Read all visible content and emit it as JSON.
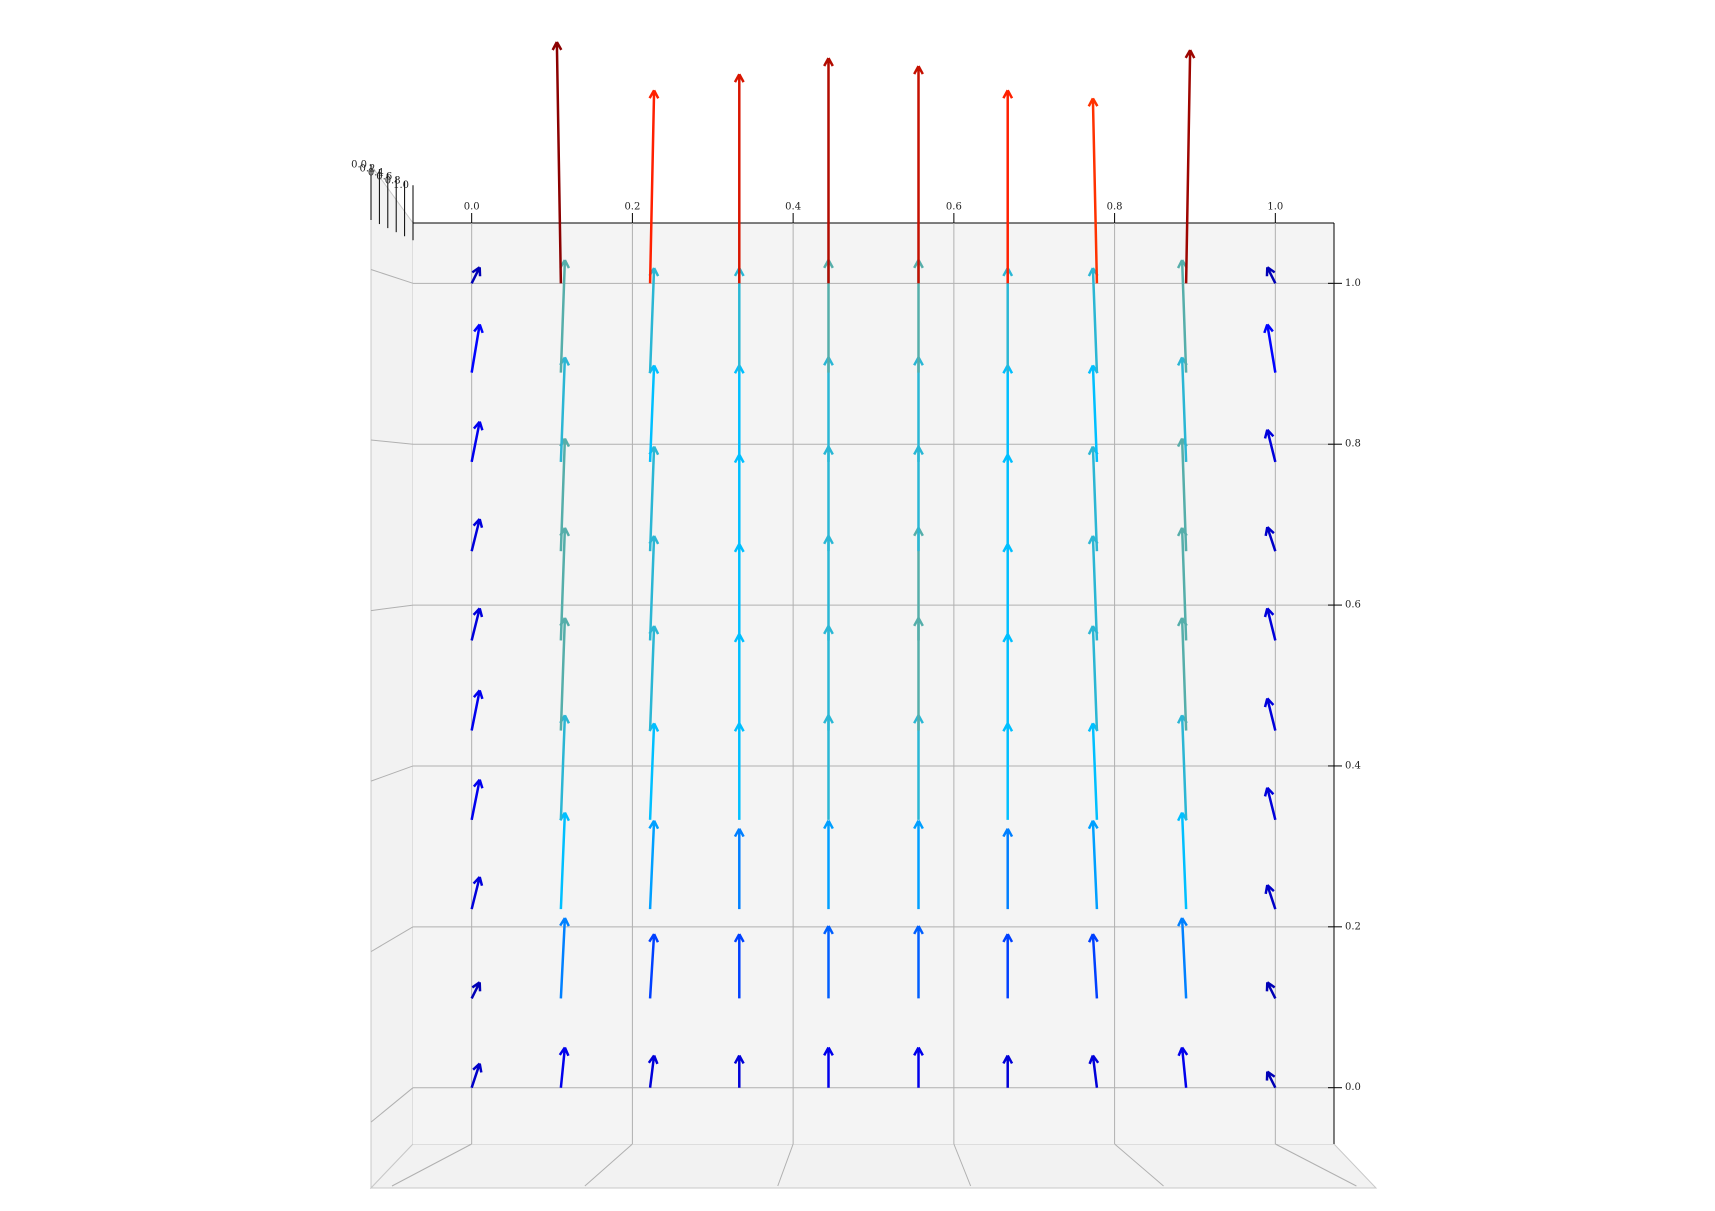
{
  "chart_data": {
    "type": "quiver3d",
    "x": [
      0,
      0.111,
      0.222,
      0.333,
      0.444,
      0.556,
      0.667,
      0.778,
      0.889,
      1.0
    ],
    "y": [
      0,
      0.111,
      0.222,
      0.333,
      0.444,
      0.556,
      0.667,
      0.778,
      0.889,
      1.0
    ],
    "u": [
      [
        0.01,
        0.005,
        0.005,
        0,
        0,
        0,
        0,
        -0.005,
        -0.005,
        -0.01
      ],
      [
        0.01,
        0.005,
        0.005,
        0,
        0,
        0,
        0,
        -0.005,
        -0.005,
        -0.01
      ],
      [
        0.01,
        0.005,
        0.005,
        0,
        0,
        0,
        0,
        -0.005,
        -0.005,
        -0.01
      ],
      [
        0.01,
        0.005,
        0.005,
        0,
        0,
        0,
        0,
        -0.005,
        -0.005,
        -0.01
      ],
      [
        0.01,
        0.005,
        0.005,
        0,
        0,
        0,
        0,
        -0.005,
        -0.005,
        -0.01
      ],
      [
        0.01,
        0.005,
        0.005,
        0,
        0,
        0,
        0,
        -0.005,
        -0.005,
        -0.01
      ],
      [
        0.01,
        0.005,
        0.005,
        0,
        0,
        0,
        0,
        -0.005,
        -0.005,
        -0.01
      ],
      [
        0.01,
        0.005,
        0.005,
        0,
        0,
        0,
        0,
        -0.005,
        -0.005,
        -0.01
      ],
      [
        0.01,
        0.005,
        0.005,
        0,
        0,
        0,
        0,
        -0.005,
        -0.005,
        -0.01
      ],
      [
        0.01,
        -0.005,
        0.005,
        0,
        0,
        0,
        0,
        -0.005,
        0.005,
        -0.01
      ]
    ],
    "v": [
      [
        0.03,
        0.05,
        0.04,
        0.04,
        0.05,
        0.05,
        0.04,
        0.04,
        0.05,
        0.02
      ],
      [
        0.02,
        0.1,
        0.08,
        0.08,
        0.09,
        0.09,
        0.08,
        0.08,
        0.1,
        0.02
      ],
      [
        0.04,
        0.12,
        0.11,
        0.1,
        0.11,
        0.11,
        0.1,
        0.11,
        0.12,
        0.03
      ],
      [
        0.05,
        0.13,
        0.12,
        0.12,
        0.13,
        0.13,
        0.12,
        0.12,
        0.13,
        0.04
      ],
      [
        0.05,
        0.14,
        0.13,
        0.12,
        0.13,
        0.14,
        0.12,
        0.13,
        0.14,
        0.04
      ],
      [
        0.04,
        0.14,
        0.13,
        0.12,
        0.13,
        0.14,
        0.12,
        0.13,
        0.14,
        0.04
      ],
      [
        0.04,
        0.14,
        0.13,
        0.12,
        0.13,
        0.13,
        0.12,
        0.13,
        0.14,
        0.03
      ],
      [
        0.05,
        0.13,
        0.12,
        0.12,
        0.13,
        0.13,
        0.12,
        0.12,
        0.13,
        0.04
      ],
      [
        0.06,
        0.14,
        0.13,
        0.13,
        0.14,
        0.14,
        0.13,
        0.13,
        0.14,
        0.06
      ],
      [
        0.02,
        0.3,
        0.24,
        0.26,
        0.28,
        0.27,
        0.24,
        0.23,
        0.29,
        0.02
      ]
    ],
    "colormap": [
      "#00008b",
      "#0000ff",
      "#00bfff",
      "#ff8c00",
      "#ff2000",
      "#8b0000"
    ],
    "xlim": [
      -0.073,
      1.073
    ],
    "ylim": [
      -0.07,
      1.075
    ],
    "zlim": [
      0,
      1
    ],
    "xticks": [
      {
        "value": 0,
        "label": "0.0"
      },
      0.2,
      0.4,
      0.6,
      0.8,
      {
        "value": 1,
        "label": "1.0"
      }
    ],
    "yticks": [
      {
        "value": 0,
        "label": "0.0"
      },
      0.2,
      0.4,
      0.6,
      0.8,
      {
        "value": 1,
        "label": "1.0"
      }
    ],
    "zticks": [
      {
        "value": 0,
        "label": "0.0"
      },
      0.2,
      0.4,
      0.6,
      0.8,
      {
        "value": 1,
        "label": "1.0"
      }
    ],
    "grid": true
  }
}
